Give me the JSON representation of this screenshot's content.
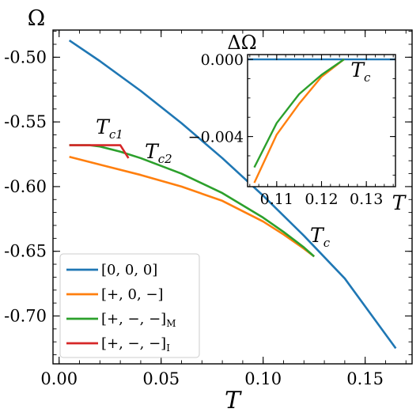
{
  "chart_data": [
    {
      "type": "line",
      "xlabel": "T",
      "ylabel": "Ω",
      "xlim": [
        -0.003,
        0.173
      ],
      "ylim": [
        -0.737,
        -0.479
      ],
      "xticks": [
        0.0,
        0.05,
        0.1,
        0.15
      ],
      "xtick_labels": [
        "0.00",
        "0.05",
        "0.10",
        "0.15"
      ],
      "yticks": [
        -0.5,
        -0.55,
        -0.6,
        -0.65,
        -0.7
      ],
      "ytick_labels": [
        "-0.50",
        "-0.55",
        "-0.60",
        "-0.65",
        "-0.70"
      ],
      "grid": false,
      "legend_position": "lower-left",
      "series": [
        {
          "name": "[0, 0, 0]",
          "color": "#1f77b4",
          "x": [
            0.005,
            0.02,
            0.04,
            0.06,
            0.08,
            0.1,
            0.12,
            0.14,
            0.165
          ],
          "y": [
            -0.487,
            -0.503,
            -0.526,
            -0.551,
            -0.578,
            -0.607,
            -0.638,
            -0.671,
            -0.725
          ]
        },
        {
          "name": "[+, 0, −]",
          "color": "#ff7f0e",
          "x": [
            0.005,
            0.02,
            0.04,
            0.06,
            0.08,
            0.1,
            0.11,
            0.12,
            0.125
          ],
          "y": [
            -0.577,
            -0.583,
            -0.591,
            -0.6,
            -0.611,
            -0.627,
            -0.637,
            -0.648,
            -0.654
          ]
        },
        {
          "name": "[+, −, −]M",
          "color": "#2ca02c",
          "x": [
            0.005,
            0.015,
            0.02,
            0.03,
            0.04,
            0.06,
            0.08,
            0.1,
            0.11,
            0.12,
            0.125
          ],
          "y": [
            -0.568,
            -0.568,
            -0.569,
            -0.573,
            -0.578,
            -0.59,
            -0.605,
            -0.624,
            -0.635,
            -0.647,
            -0.654
          ]
        },
        {
          "name": "[+, −, −]I",
          "color": "#d62728",
          "x": [
            0.005,
            0.015,
            0.03,
            0.034
          ],
          "y": [
            -0.568,
            -0.568,
            -0.568,
            -0.578
          ]
        }
      ],
      "annotations": [
        {
          "text": "T",
          "sub": "c1",
          "x": 0.018,
          "y": -0.559
        },
        {
          "text": "T",
          "sub": "c2",
          "x": 0.042,
          "y": -0.578
        },
        {
          "text": "T",
          "sub": "c",
          "x": 0.123,
          "y": -0.643
        }
      ]
    },
    {
      "type": "line",
      "xlabel": "T",
      "ylabel": "ΔΩ",
      "xlim": [
        0.1035,
        0.1365
      ],
      "ylim": [
        -0.0066,
        0.00025
      ],
      "xticks": [
        0.11,
        0.12,
        0.13
      ],
      "xtick_labels": [
        "0.11",
        "0.12",
        "0.13"
      ],
      "yticks": [
        0.0,
        -0.004
      ],
      "ytick_labels": [
        "0.000",
        "−0.004"
      ],
      "grid": false,
      "series": [
        {
          "name": "[0, 0, 0]",
          "color": "#1f77b4",
          "x": [
            0.1035,
            0.1365
          ],
          "y": [
            0.0,
            0.0
          ]
        },
        {
          "name": "[+, 0, −]",
          "color": "#ff7f0e",
          "x": [
            0.105,
            0.11,
            0.115,
            0.12,
            0.125
          ],
          "y": [
            -0.0064,
            -0.0039,
            -0.0023,
            -0.0009,
            0.0
          ]
        },
        {
          "name": "[+, −, −]M",
          "color": "#2ca02c",
          "x": [
            0.105,
            0.11,
            0.115,
            0.12,
            0.125
          ],
          "y": [
            -0.0056,
            -0.0033,
            -0.0018,
            -0.0008,
            0.0
          ]
        }
      ],
      "annotations": [
        {
          "text": "T",
          "sub": "c",
          "x": 0.1265,
          "y": -0.0009
        }
      ]
    }
  ],
  "legend": [
    {
      "label": "[0, 0, 0]",
      "sub": "",
      "color": "#1f77b4"
    },
    {
      "label": "[+, 0, −]",
      "sub": "",
      "color": "#ff7f0e"
    },
    {
      "label": "[+, −, −]",
      "sub": "M",
      "color": "#2ca02c"
    },
    {
      "label": "[+, −, −]",
      "sub": "I",
      "color": "#d62728"
    }
  ]
}
